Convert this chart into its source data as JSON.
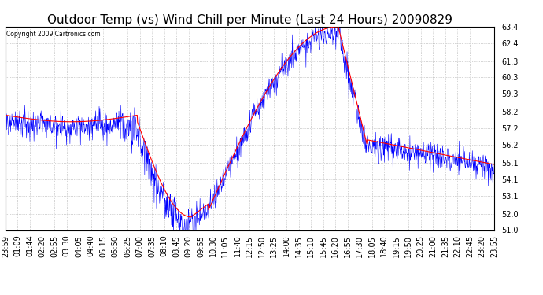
{
  "title": "Outdoor Temp (vs) Wind Chill per Minute (Last 24 Hours) 20090829",
  "copyright_text": "Copyright 2009 Cartronics.com",
  "y_min": 51.0,
  "y_max": 63.4,
  "y_ticks": [
    51.0,
    52.0,
    53.1,
    54.1,
    55.1,
    56.2,
    57.2,
    58.2,
    59.3,
    60.3,
    61.3,
    62.4,
    63.4
  ],
  "x_labels": [
    "23:59",
    "01:09",
    "01:44",
    "02:20",
    "02:55",
    "03:30",
    "04:05",
    "04:40",
    "05:15",
    "05:50",
    "06:25",
    "07:00",
    "07:35",
    "08:10",
    "08:45",
    "09:20",
    "09:55",
    "10:30",
    "11:05",
    "11:40",
    "12:15",
    "12:50",
    "13:25",
    "14:00",
    "14:35",
    "15:10",
    "15:45",
    "16:20",
    "16:55",
    "17:30",
    "18:05",
    "18:40",
    "19:15",
    "19:50",
    "20:25",
    "21:00",
    "21:35",
    "22:10",
    "22:45",
    "23:20",
    "23:55"
  ],
  "bg_color": "#ffffff",
  "grid_color": "#aaaaaa",
  "line_color_outdoor": "#ff0000",
  "line_color_windchill": "#0000ff",
  "title_fontsize": 11,
  "tick_fontsize": 7,
  "copyright_fontsize": 5.5
}
